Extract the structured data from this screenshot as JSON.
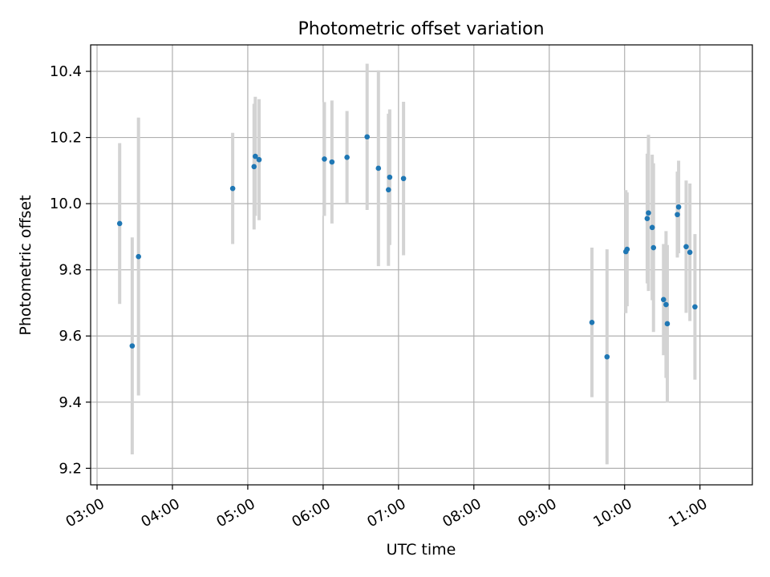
{
  "chart_data": {
    "type": "scatter",
    "title": "Photometric offset variation",
    "xlabel": "UTC time",
    "ylabel": "Photometric offset",
    "xlim": [
      "03:00",
      "11:20"
    ],
    "ylim": [
      9.15,
      10.48
    ],
    "x_ticks": [
      "03:00",
      "04:00",
      "05:00",
      "06:00",
      "07:00",
      "08:00",
      "09:00",
      "10:00",
      "11:00"
    ],
    "y_ticks": [
      "9.2",
      "9.4",
      "9.6",
      "9.8",
      "10.0",
      "10.2",
      "10.4"
    ],
    "y_tick_values": [
      9.2,
      9.4,
      9.6,
      9.8,
      10.0,
      10.2,
      10.4
    ],
    "grid": true,
    "marker_color": "#1f77b4",
    "errorbar_color": "#d3d3d3",
    "series": [
      {
        "points": [
          {
            "x": "03:18",
            "y": 9.94,
            "err": 0.243
          },
          {
            "x": "03:28",
            "y": 9.57,
            "err": 0.328
          },
          {
            "x": "03:33",
            "y": 9.84,
            "err": 0.42
          },
          {
            "x": "04:48",
            "y": 10.046,
            "err": 0.168
          },
          {
            "x": "05:05",
            "y": 10.112,
            "err": 0.19
          },
          {
            "x": "05:06",
            "y": 10.143,
            "err": 0.18
          },
          {
            "x": "05:09",
            "y": 10.133,
            "err": 0.183
          },
          {
            "x": "06:01",
            "y": 10.135,
            "err": 0.172
          },
          {
            "x": "06:07",
            "y": 10.126,
            "err": 0.186
          },
          {
            "x": "06:19",
            "y": 10.14,
            "err": 0.14
          },
          {
            "x": "06:35",
            "y": 10.202,
            "err": 0.221
          },
          {
            "x": "06:44",
            "y": 10.107,
            "err": 0.296
          },
          {
            "x": "06:52",
            "y": 10.042,
            "err": 0.23
          },
          {
            "x": "06:53",
            "y": 10.08,
            "err": 0.205
          },
          {
            "x": "07:04",
            "y": 10.076,
            "err": 0.232
          },
          {
            "x": "09:34",
            "y": 9.641,
            "err": 0.226
          },
          {
            "x": "09:46",
            "y": 9.537,
            "err": 0.325
          },
          {
            "x": "10:01",
            "y": 9.855,
            "err": 0.186
          },
          {
            "x": "10:02",
            "y": 9.862,
            "err": 0.172
          },
          {
            "x": "10:18",
            "y": 9.955,
            "err": 0.196
          },
          {
            "x": "10:19",
            "y": 9.972,
            "err": 0.236
          },
          {
            "x": "10:22",
            "y": 9.928,
            "err": 0.22
          },
          {
            "x": "10:23",
            "y": 9.867,
            "err": 0.255
          },
          {
            "x": "10:31",
            "y": 9.71,
            "err": 0.168
          },
          {
            "x": "10:33",
            "y": 9.695,
            "err": 0.222
          },
          {
            "x": "10:34",
            "y": 9.637,
            "err": 0.238
          },
          {
            "x": "10:42",
            "y": 9.967,
            "err": 0.13
          },
          {
            "x": "10:43",
            "y": 9.99,
            "err": 0.14
          },
          {
            "x": "10:49",
            "y": 9.87,
            "err": 0.2
          },
          {
            "x": "10:52",
            "y": 9.853,
            "err": 0.208
          },
          {
            "x": "10:56",
            "y": 9.688,
            "err": 0.22
          }
        ]
      }
    ]
  }
}
